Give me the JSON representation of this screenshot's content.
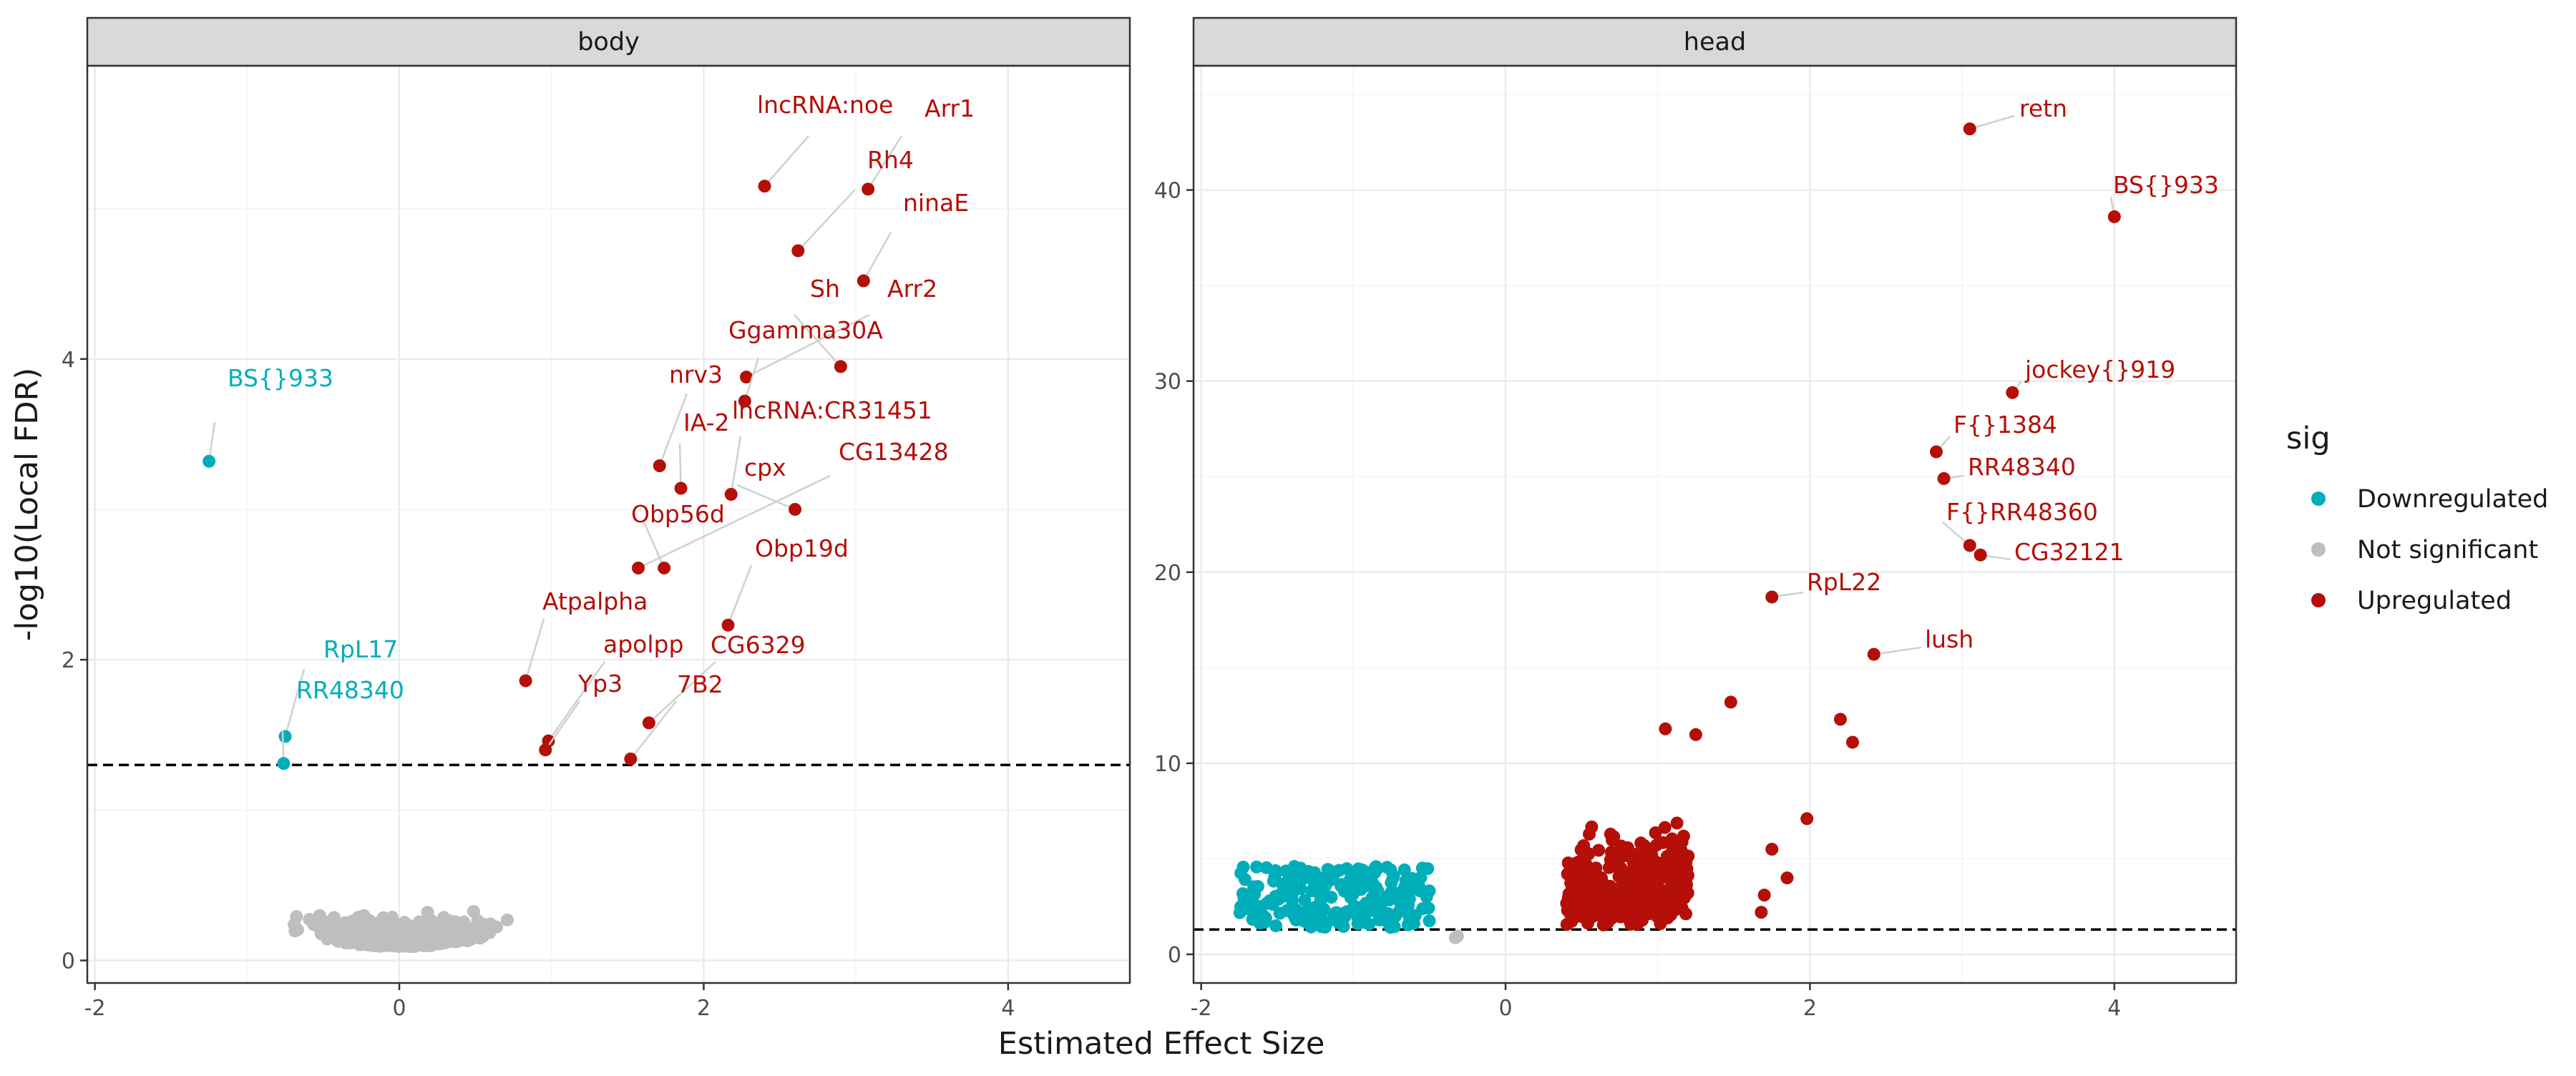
{
  "chart_data": {
    "type": "scatter",
    "xlabel": "Estimated Effect Size",
    "ylabel": "-log10(Local FDR)",
    "significance_threshold": 1.3,
    "legend": {
      "title": "sig",
      "placement": "right",
      "entries": [
        {
          "name": "Downregulated",
          "color": "#00AEBA"
        },
        {
          "name": "Not significant",
          "color": "#BEBEBE"
        },
        {
          "name": "Upregulated",
          "color": "#B40F08"
        }
      ]
    },
    "colors": {
      "Downregulated": "#00AEBA",
      "Not significant": "#BEBEBE",
      "Upregulated": "#B40F08",
      "panel_bg": "#FFFFFF",
      "strip_bg": "#D9D9D9",
      "grid_major": "#EBEBEB",
      "grid_minor": "#F4F4F4",
      "border": "#333333"
    },
    "panels": [
      {
        "strip": "body",
        "xlim": [
          -2.05,
          4.8
        ],
        "ylim": [
          -0.15,
          5.95
        ],
        "xticks": [
          -2,
          0,
          2,
          4
        ],
        "yticks": [
          0,
          2,
          4
        ],
        "labeled_points": [
          {
            "gene": "BS{}933",
            "x": -1.25,
            "y": 3.32,
            "sig": "Downregulated"
          },
          {
            "gene": "RpL17",
            "x": -0.75,
            "y": 1.49,
            "sig": "Downregulated"
          },
          {
            "gene": "RR48340",
            "x": -0.76,
            "y": 1.31,
            "sig": "Downregulated"
          },
          {
            "gene": "lncRNA:noe",
            "x": 2.4,
            "y": 5.15,
            "sig": "Upregulated"
          },
          {
            "gene": "Arr1",
            "x": 3.08,
            "y": 5.13,
            "sig": "Upregulated"
          },
          {
            "gene": "Rh4",
            "x": 2.62,
            "y": 4.72,
            "sig": "Upregulated"
          },
          {
            "gene": "ninaE",
            "x": 3.05,
            "y": 4.52,
            "sig": "Upregulated"
          },
          {
            "gene": "Sh",
            "x": 2.9,
            "y": 3.95,
            "sig": "Upregulated"
          },
          {
            "gene": "Arr2",
            "x": 2.28,
            "y": 3.88,
            "sig": "Upregulated"
          },
          {
            "gene": "Ggamma30A",
            "x": 2.27,
            "y": 3.72,
            "sig": "Upregulated"
          },
          {
            "gene": "nrv3",
            "x": 1.71,
            "y": 3.29,
            "sig": "Upregulated"
          },
          {
            "gene": "IA-2",
            "x": 1.85,
            "y": 3.14,
            "sig": "Upregulated"
          },
          {
            "gene": "lncRNA:CR31451",
            "x": 2.18,
            "y": 3.1,
            "sig": "Upregulated"
          },
          {
            "gene": "cpx",
            "x": 2.6,
            "y": 3.0,
            "sig": "Upregulated"
          },
          {
            "gene": "CG13428",
            "x": 1.57,
            "y": 2.61,
            "sig": "Upregulated"
          },
          {
            "gene": "Obp56d",
            "x": 1.74,
            "y": 2.61,
            "sig": "Upregulated"
          },
          {
            "gene": "Obp19d",
            "x": 2.16,
            "y": 2.23,
            "sig": "Upregulated"
          },
          {
            "gene": "Atpalpha",
            "x": 0.83,
            "y": 1.86,
            "sig": "Upregulated"
          },
          {
            "gene": "apolpp",
            "x": 0.98,
            "y": 1.46,
            "sig": "Upregulated"
          },
          {
            "gene": "CG6329",
            "x": 1.64,
            "y": 1.58,
            "sig": "Upregulated"
          },
          {
            "gene": "Yp3",
            "x": 0.96,
            "y": 1.4,
            "sig": "Upregulated"
          },
          {
            "gene": "7B2",
            "x": 1.52,
            "y": 1.34,
            "sig": "Upregulated"
          }
        ]
      },
      {
        "strip": "head",
        "xlim": [
          -2.05,
          4.8
        ],
        "ylim": [
          -1.5,
          46.5
        ],
        "xticks": [
          -2,
          0,
          2,
          4
        ],
        "yticks": [
          0,
          10,
          20,
          30,
          40
        ],
        "labeled_points": [
          {
            "gene": "retn",
            "x": 3.05,
            "y": 43.2,
            "sig": "Upregulated"
          },
          {
            "gene": "BS{}933",
            "x": 4.0,
            "y": 38.6,
            "sig": "Upregulated"
          },
          {
            "gene": "jockey{}919",
            "x": 3.33,
            "y": 29.4,
            "sig": "Upregulated"
          },
          {
            "gene": "F{}1384",
            "x": 2.83,
            "y": 26.3,
            "sig": "Upregulated"
          },
          {
            "gene": "RR48340",
            "x": 2.88,
            "y": 24.9,
            "sig": "Upregulated"
          },
          {
            "gene": "F{}RR48360",
            "x": 3.05,
            "y": 21.4,
            "sig": "Upregulated"
          },
          {
            "gene": "CG32121",
            "x": 3.12,
            "y": 20.9,
            "sig": "Upregulated"
          },
          {
            "gene": "RpL22",
            "x": 1.75,
            "y": 18.7,
            "sig": "Upregulated"
          },
          {
            "gene": "lush",
            "x": 2.42,
            "y": 15.7,
            "sig": "Upregulated"
          }
        ]
      }
    ]
  }
}
